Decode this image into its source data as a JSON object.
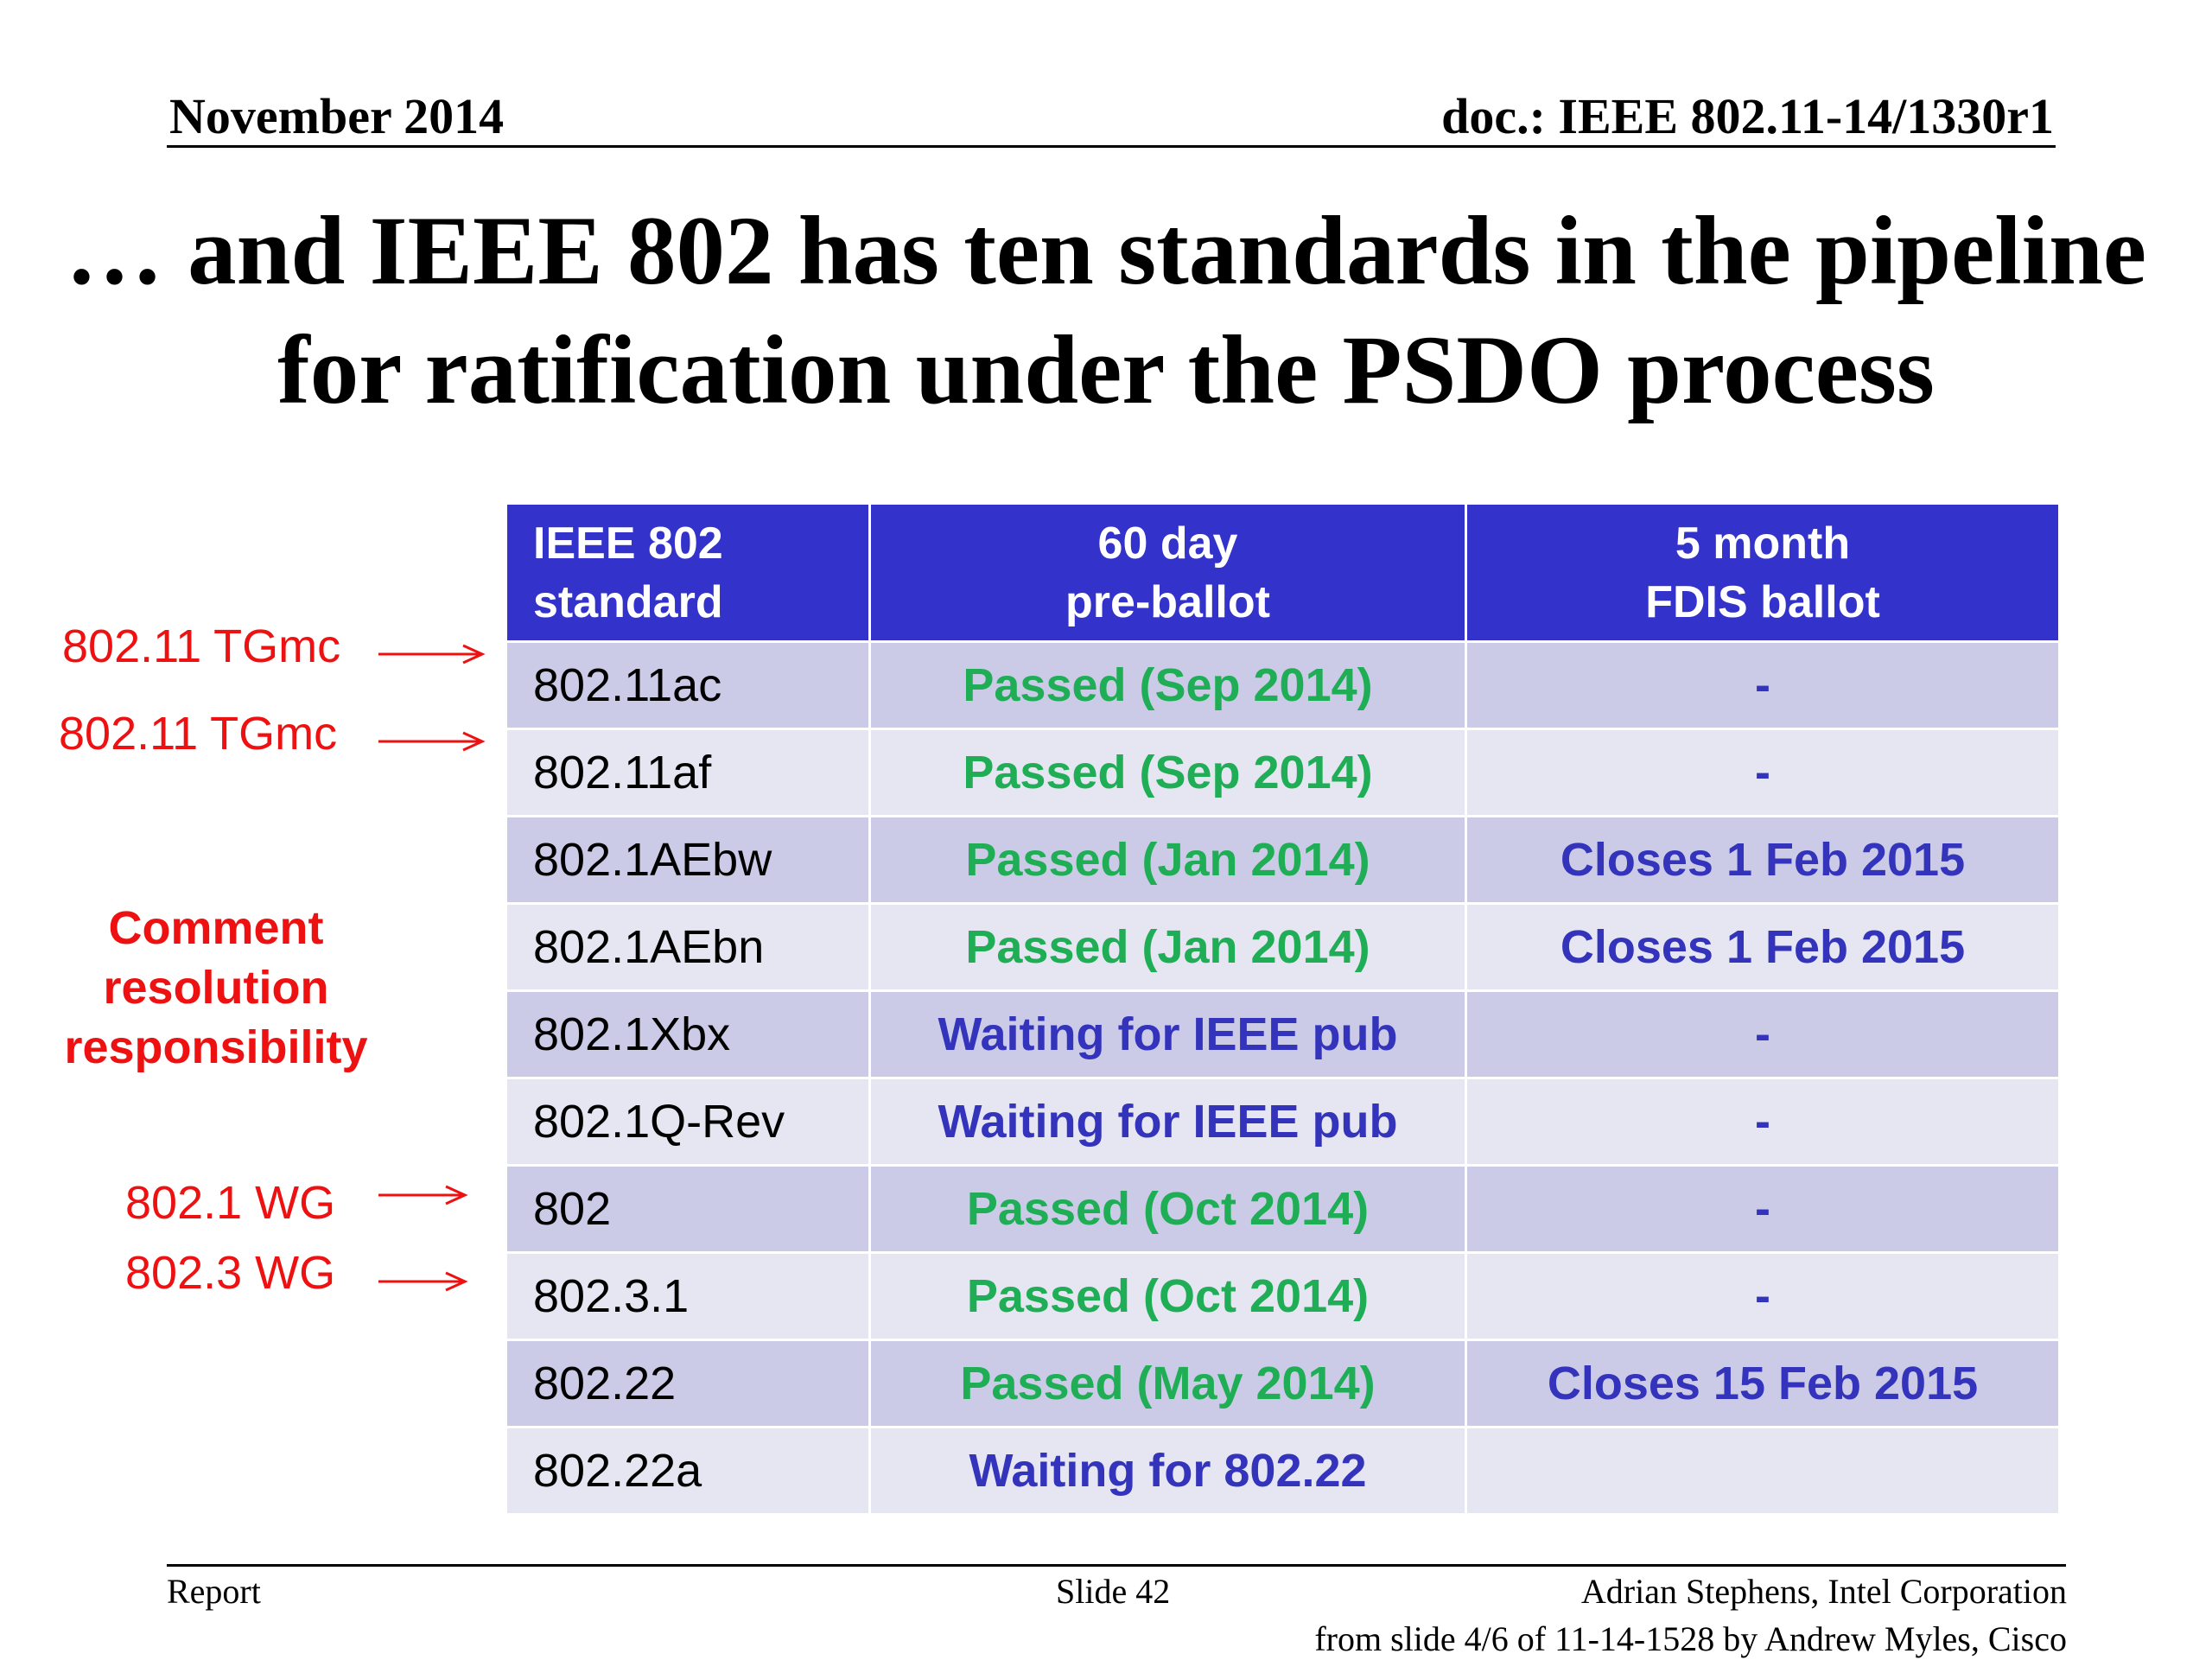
{
  "header": {
    "date": "November 2014",
    "doc": "doc.: IEEE 802.11-14/1330r1"
  },
  "title": {
    "line1": "… and IEEE 802 has ten standards in the pipeline",
    "line2": "for ratification under the PSDO process"
  },
  "table": {
    "headers": [
      {
        "line1": "IEEE 802",
        "line2": "standard"
      },
      {
        "line1": "60 day",
        "line2": "pre-ballot"
      },
      {
        "line1": "5 month",
        "line2": "FDIS ballot"
      }
    ],
    "rows": [
      {
        "standard": "802.11ac",
        "preballot": "Passed (Sep 2014)",
        "preballot_color": "#1fae55",
        "fdis": "-"
      },
      {
        "standard": "802.11af",
        "preballot": "Passed (Sep 2014)",
        "preballot_color": "#1fae55",
        "fdis": "-"
      },
      {
        "standard": "802.1AEbw",
        "preballot": "Passed (Jan 2014)",
        "preballot_color": "#1fae55",
        "fdis": "Closes 1 Feb 2015"
      },
      {
        "standard": "802.1AEbn",
        "preballot": "Passed (Jan 2014)",
        "preballot_color": "#1fae55",
        "fdis": "Closes 1 Feb 2015"
      },
      {
        "standard": "802.1Xbx",
        "preballot": "Waiting for IEEE pub",
        "preballot_color": "#3333bb",
        "fdis": "-"
      },
      {
        "standard": "802.1Q-Rev",
        "preballot": "Waiting for IEEE pub",
        "preballot_color": "#3333bb",
        "fdis": "-"
      },
      {
        "standard": "802",
        "preballot": "Passed (Oct 2014)",
        "preballot_color": "#1fae55",
        "fdis": "-"
      },
      {
        "standard": "802.3.1",
        "preballot": "Passed (Oct 2014)",
        "preballot_color": "#1fae55",
        "fdis": "-"
      },
      {
        "standard": "802.22",
        "preballot": "Passed (May 2014)",
        "preballot_color": "#1fae55",
        "fdis": "Closes 15 Feb 2015"
      },
      {
        "standard": "802.22a",
        "preballot": "Waiting for 802.22",
        "preballot_color": "#3333bb",
        "fdis": ""
      }
    ]
  },
  "annotations": {
    "tgmc_1": "802.11 TGmc",
    "tgmc_2": "802.11 TGmc",
    "comment_line1": "Comment",
    "comment_line2": "resolution",
    "comment_line3": "responsibility",
    "wg_1": "802.1 WG",
    "wg_3": "802.3 WG"
  },
  "footer": {
    "left": "Report",
    "slide": "Slide 42",
    "author": "Adrian Stephens, Intel Corporation",
    "note": "from slide 4/6 of 11-14-1528 by Andrew Myles, Cisco"
  },
  "colors": {
    "header_bg": "#3333cc",
    "row_odd": "#cbcbe8",
    "row_even": "#e6e6f3",
    "passed": "#1fae55",
    "waiting": "#3333bb",
    "annotation": "#ee1111"
  }
}
